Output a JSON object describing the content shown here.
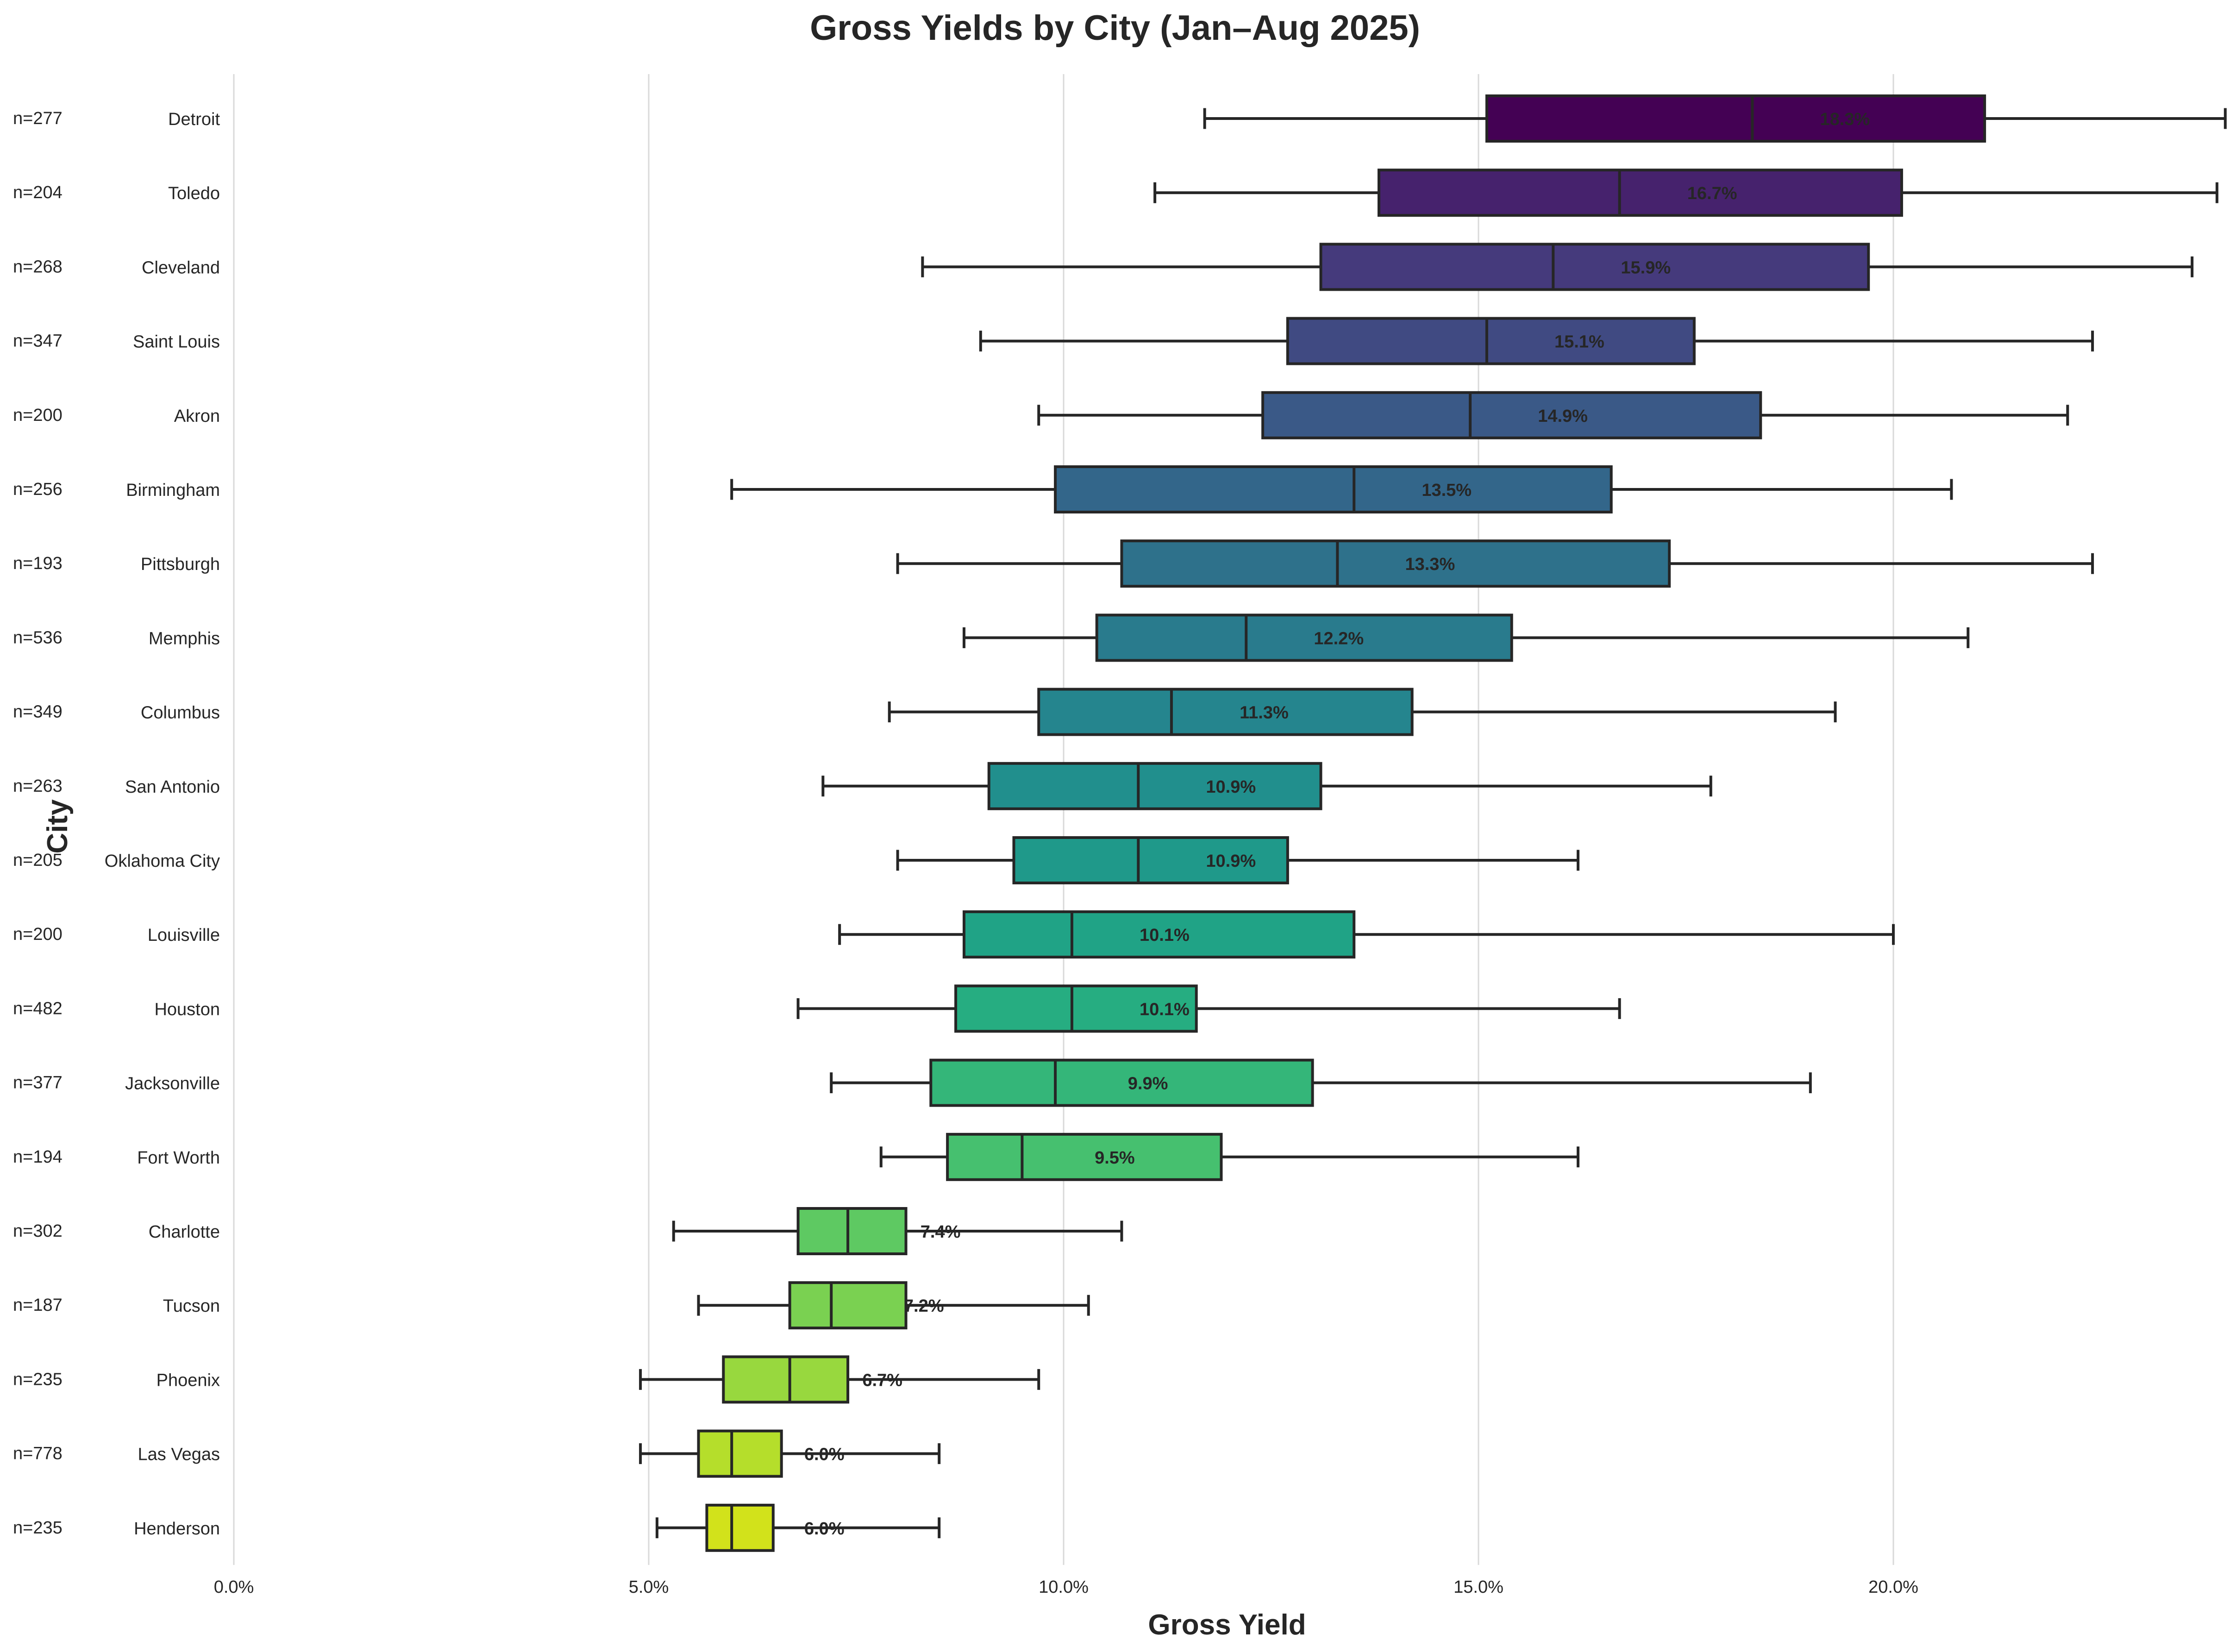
{
  "chart_data": {
    "type": "box",
    "orientation": "horizontal",
    "title": "Gross Yields by City (Jan–Aug 2025)",
    "xlabel": "Gross Yield",
    "ylabel": "City",
    "xlim": [
      0,
      24
    ],
    "xticks": [
      0,
      5,
      10,
      15,
      20
    ],
    "xtick_labels": [
      "0.0%",
      "5.0%",
      "10.0%",
      "15.0%",
      "20.0%"
    ],
    "grid": "vertical",
    "palette": "viridis",
    "categories": [
      {
        "city": "Detroit",
        "n": "n=277",
        "median_label": "18.3%",
        "whislo": 11.7,
        "q1": 15.1,
        "median": 18.3,
        "q3": 21.1,
        "whishi": 24.0,
        "color": "#440154"
      },
      {
        "city": "Toledo",
        "n": "n=204",
        "median_label": "16.7%",
        "whislo": 11.1,
        "q1": 13.8,
        "median": 16.7,
        "q3": 20.1,
        "whishi": 23.9,
        "color": "#46226d"
      },
      {
        "city": "Cleveland",
        "n": "n=268",
        "median_label": "15.9%",
        "whislo": 8.3,
        "q1": 13.1,
        "median": 15.9,
        "q3": 19.7,
        "whishi": 23.6,
        "color": "#453a7c"
      },
      {
        "city": "Saint Louis",
        "n": "n=347",
        "median_label": "15.1%",
        "whislo": 9.0,
        "q1": 12.7,
        "median": 15.1,
        "q3": 17.6,
        "whishi": 22.4,
        "color": "#404a82"
      },
      {
        "city": "Akron",
        "n": "n=200",
        "median_label": "14.9%",
        "whislo": 9.7,
        "q1": 12.4,
        "median": 14.9,
        "q3": 18.4,
        "whishi": 22.1,
        "color": "#3a5987"
      },
      {
        "city": "Birmingham",
        "n": "n=256",
        "median_label": "13.5%",
        "whislo": 6.0,
        "q1": 9.9,
        "median": 13.5,
        "q3": 16.6,
        "whishi": 20.7,
        "color": "#33668a"
      },
      {
        "city": "Pittsburgh",
        "n": "n=193",
        "median_label": "13.3%",
        "whislo": 8.0,
        "q1": 10.7,
        "median": 13.3,
        "q3": 17.3,
        "whishi": 22.4,
        "color": "#2e718b"
      },
      {
        "city": "Memphis",
        "n": "n=536",
        "median_label": "12.2%",
        "whislo": 8.8,
        "q1": 10.4,
        "median": 12.2,
        "q3": 15.4,
        "whishi": 20.9,
        "color": "#297b8d"
      },
      {
        "city": "Columbus",
        "n": "n=349",
        "median_label": "11.3%",
        "whislo": 7.9,
        "q1": 9.7,
        "median": 11.3,
        "q3": 14.2,
        "whishi": 19.3,
        "color": "#25858e"
      },
      {
        "city": "San Antonio",
        "n": "n=263",
        "median_label": "10.9%",
        "whislo": 7.1,
        "q1": 9.1,
        "median": 10.9,
        "q3": 13.1,
        "whishi": 17.8,
        "color": "#218f8d"
      },
      {
        "city": "Oklahoma City",
        "n": "n=205",
        "median_label": "10.9%",
        "whislo": 8.0,
        "q1": 9.4,
        "median": 10.9,
        "q3": 12.7,
        "whishi": 16.2,
        "color": "#1f998a"
      },
      {
        "city": "Louisville",
        "n": "n=200",
        "median_label": "10.1%",
        "whislo": 7.3,
        "q1": 8.8,
        "median": 10.1,
        "q3": 13.5,
        "whishi": 20.0,
        "color": "#20a386"
      },
      {
        "city": "Houston",
        "n": "n=482",
        "median_label": "10.1%",
        "whislo": 6.8,
        "q1": 8.7,
        "median": 10.1,
        "q3": 11.6,
        "whishi": 16.7,
        "color": "#26ad81"
      },
      {
        "city": "Jacksonville",
        "n": "n=377",
        "median_label": "9.9%",
        "whislo": 7.2,
        "q1": 8.4,
        "median": 9.9,
        "q3": 13.0,
        "whishi": 19.0,
        "color": "#34b679"
      },
      {
        "city": "Fort Worth",
        "n": "n=194",
        "median_label": "9.5%",
        "whislo": 7.8,
        "q1": 8.6,
        "median": 9.5,
        "q3": 11.9,
        "whishi": 16.2,
        "color": "#46c06f"
      },
      {
        "city": "Charlotte",
        "n": "n=302",
        "median_label": "7.4%",
        "whislo": 5.3,
        "q1": 6.8,
        "median": 7.4,
        "q3": 8.1,
        "whishi": 10.7,
        "color": "#5ec962"
      },
      {
        "city": "Tucson",
        "n": "n=187",
        "median_label": "7.2%",
        "whislo": 5.6,
        "q1": 6.7,
        "median": 7.2,
        "q3": 8.1,
        "whishi": 10.3,
        "color": "#7ad151"
      },
      {
        "city": "Phoenix",
        "n": "n=235",
        "median_label": "6.7%",
        "whislo": 4.9,
        "q1": 5.9,
        "median": 6.7,
        "q3": 7.4,
        "whishi": 9.7,
        "color": "#98d83e"
      },
      {
        "city": "Las Vegas",
        "n": "n=778",
        "median_label": "6.0%",
        "whislo": 4.9,
        "q1": 5.6,
        "median": 6.0,
        "q3": 6.6,
        "whishi": 8.5,
        "color": "#b5de2b"
      },
      {
        "city": "Henderson",
        "n": "n=235",
        "median_label": "6.0%",
        "whislo": 5.1,
        "q1": 5.7,
        "median": 6.0,
        "q3": 6.5,
        "whishi": 8.5,
        "color": "#d2e21b"
      }
    ]
  }
}
